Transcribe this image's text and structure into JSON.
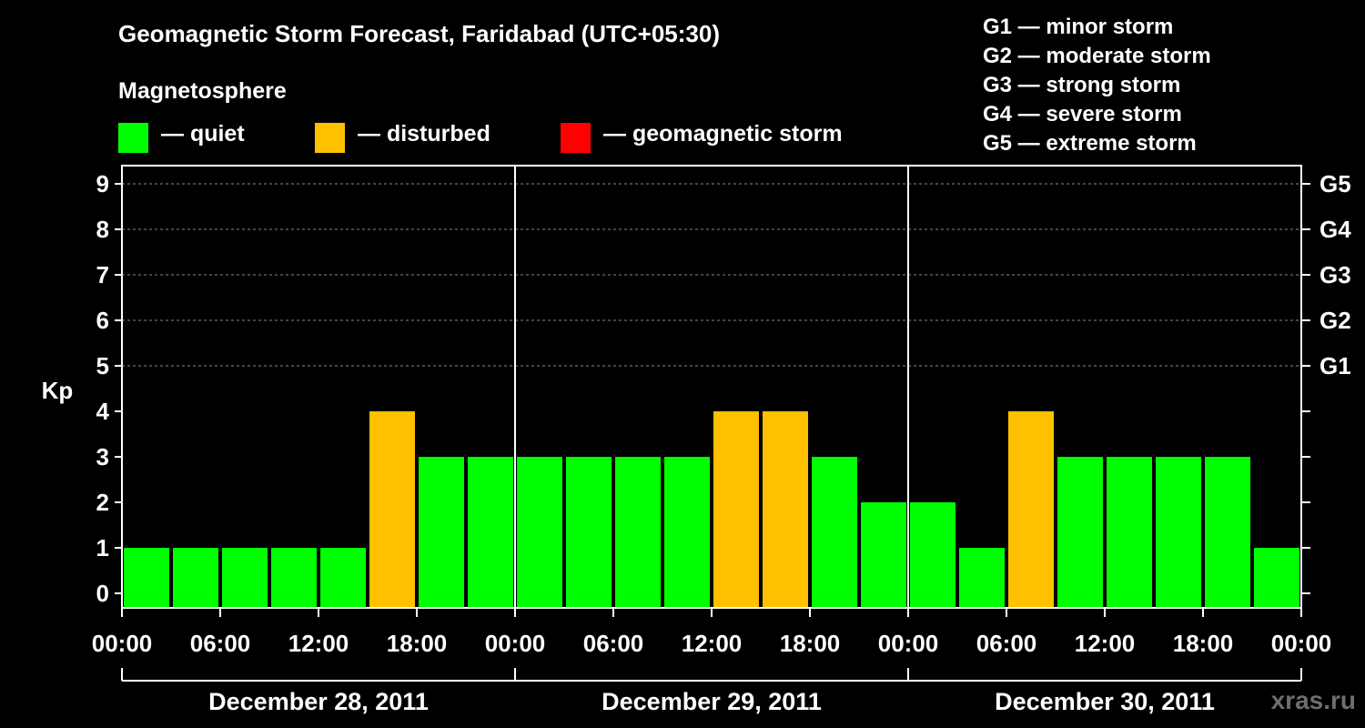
{
  "title": "Geomagnetic Storm Forecast, Faridabad (UTC+05:30)",
  "subtitle": "Magnetosphere",
  "legend": [
    {
      "label": "— quiet",
      "color": "#00ff00"
    },
    {
      "label": "— disturbed",
      "color": "#ffc000"
    },
    {
      "label": "— geomagnetic storm",
      "color": "#ff0000"
    }
  ],
  "storm_scale": [
    "G1 — minor storm",
    "G2 — moderate storm",
    "G3 — strong storm",
    "G4 — severe storm",
    "G5 — extreme storm"
  ],
  "watermark": "xras.ru",
  "chart_data": {
    "type": "bar",
    "ylabel": "Kp",
    "ylim": [
      0,
      9
    ],
    "y_ticks": [
      "0",
      "1",
      "2",
      "3",
      "4",
      "5",
      "6",
      "7",
      "8",
      "9"
    ],
    "right_ticks": [
      {
        "y": 5,
        "label": "G1"
      },
      {
        "y": 6,
        "label": "G2"
      },
      {
        "y": 7,
        "label": "G3"
      },
      {
        "y": 8,
        "label": "G4"
      },
      {
        "y": 9,
        "label": "G5"
      }
    ],
    "x_tick_labels": [
      "00:00",
      "06:00",
      "12:00",
      "18:00",
      "00:00",
      "06:00",
      "12:00",
      "18:00",
      "00:00",
      "06:00",
      "12:00",
      "18:00",
      "00:00"
    ],
    "dates": [
      "December 28, 2011",
      "December 29, 2011",
      "December 30, 2011"
    ],
    "categories": [
      "Dec 28 00:00",
      "Dec 28 03:00",
      "Dec 28 06:00",
      "Dec 28 09:00",
      "Dec 28 12:00",
      "Dec 28 15:00",
      "Dec 28 18:00",
      "Dec 28 21:00",
      "Dec 29 00:00",
      "Dec 29 03:00",
      "Dec 29 06:00",
      "Dec 29 09:00",
      "Dec 29 12:00",
      "Dec 29 15:00",
      "Dec 29 18:00",
      "Dec 29 21:00",
      "Dec 30 00:00",
      "Dec 30 03:00",
      "Dec 30 06:00",
      "Dec 30 09:00",
      "Dec 30 12:00",
      "Dec 30 15:00",
      "Dec 30 18:00",
      "Dec 30 21:00"
    ],
    "values": [
      1,
      1,
      1,
      1,
      1,
      4,
      3,
      3,
      3,
      3,
      3,
      3,
      4,
      4,
      3,
      2,
      2,
      1,
      4,
      3,
      3,
      3,
      3,
      1
    ],
    "colors": {
      "quiet": "#00ff00",
      "disturbed": "#ffc000",
      "storm": "#ff0000"
    },
    "grid": true
  }
}
